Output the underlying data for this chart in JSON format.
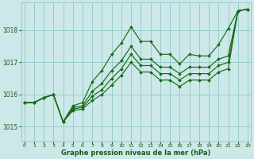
{
  "background_color": "#cce8e8",
  "grid_color": "#99cccc",
  "line_color": "#1a6b1a",
  "text_color": "#1a5c1a",
  "xlabel": "Graphe pression niveau de la mer (hPa)",
  "ylim": [
    1014.55,
    1018.85
  ],
  "xlim": [
    -0.3,
    23.3
  ],
  "yticks": [
    1015,
    1016,
    1017,
    1018
  ],
  "xticks": [
    0,
    1,
    2,
    3,
    4,
    5,
    6,
    7,
    8,
    9,
    10,
    11,
    12,
    13,
    14,
    15,
    16,
    17,
    18,
    19,
    20,
    21,
    22,
    23
  ],
  "series": [
    [
      1015.75,
      1015.75,
      1015.9,
      1016.0,
      1015.15,
      1015.65,
      1015.75,
      1016.4,
      1016.75,
      1017.25,
      1017.6,
      1018.1,
      1017.65,
      1017.65,
      1017.25,
      1017.25,
      1016.95,
      1017.25,
      1017.2,
      1017.2,
      1017.55,
      1018.05,
      1018.6,
      1018.65
    ],
    [
      1015.75,
      1015.75,
      1015.9,
      1016.0,
      1015.15,
      1015.6,
      1015.65,
      1016.1,
      1016.35,
      1016.75,
      1017.05,
      1017.5,
      1017.1,
      1017.1,
      1016.85,
      1016.85,
      1016.65,
      1016.85,
      1016.85,
      1016.85,
      1017.1,
      1017.2,
      1018.6,
      1018.65
    ],
    [
      1015.75,
      1015.75,
      1015.9,
      1016.0,
      1015.15,
      1015.55,
      1015.6,
      1015.95,
      1016.15,
      1016.5,
      1016.8,
      1017.25,
      1016.9,
      1016.9,
      1016.65,
      1016.65,
      1016.45,
      1016.65,
      1016.65,
      1016.65,
      1016.9,
      1017.0,
      1018.6,
      1018.65
    ],
    [
      1015.75,
      1015.75,
      1015.9,
      1016.0,
      1015.15,
      1015.5,
      1015.55,
      1015.82,
      1016.0,
      1016.3,
      1016.6,
      1017.0,
      1016.7,
      1016.7,
      1016.45,
      1016.45,
      1016.25,
      1016.45,
      1016.45,
      1016.45,
      1016.7,
      1016.8,
      1018.6,
      1018.65
    ]
  ]
}
